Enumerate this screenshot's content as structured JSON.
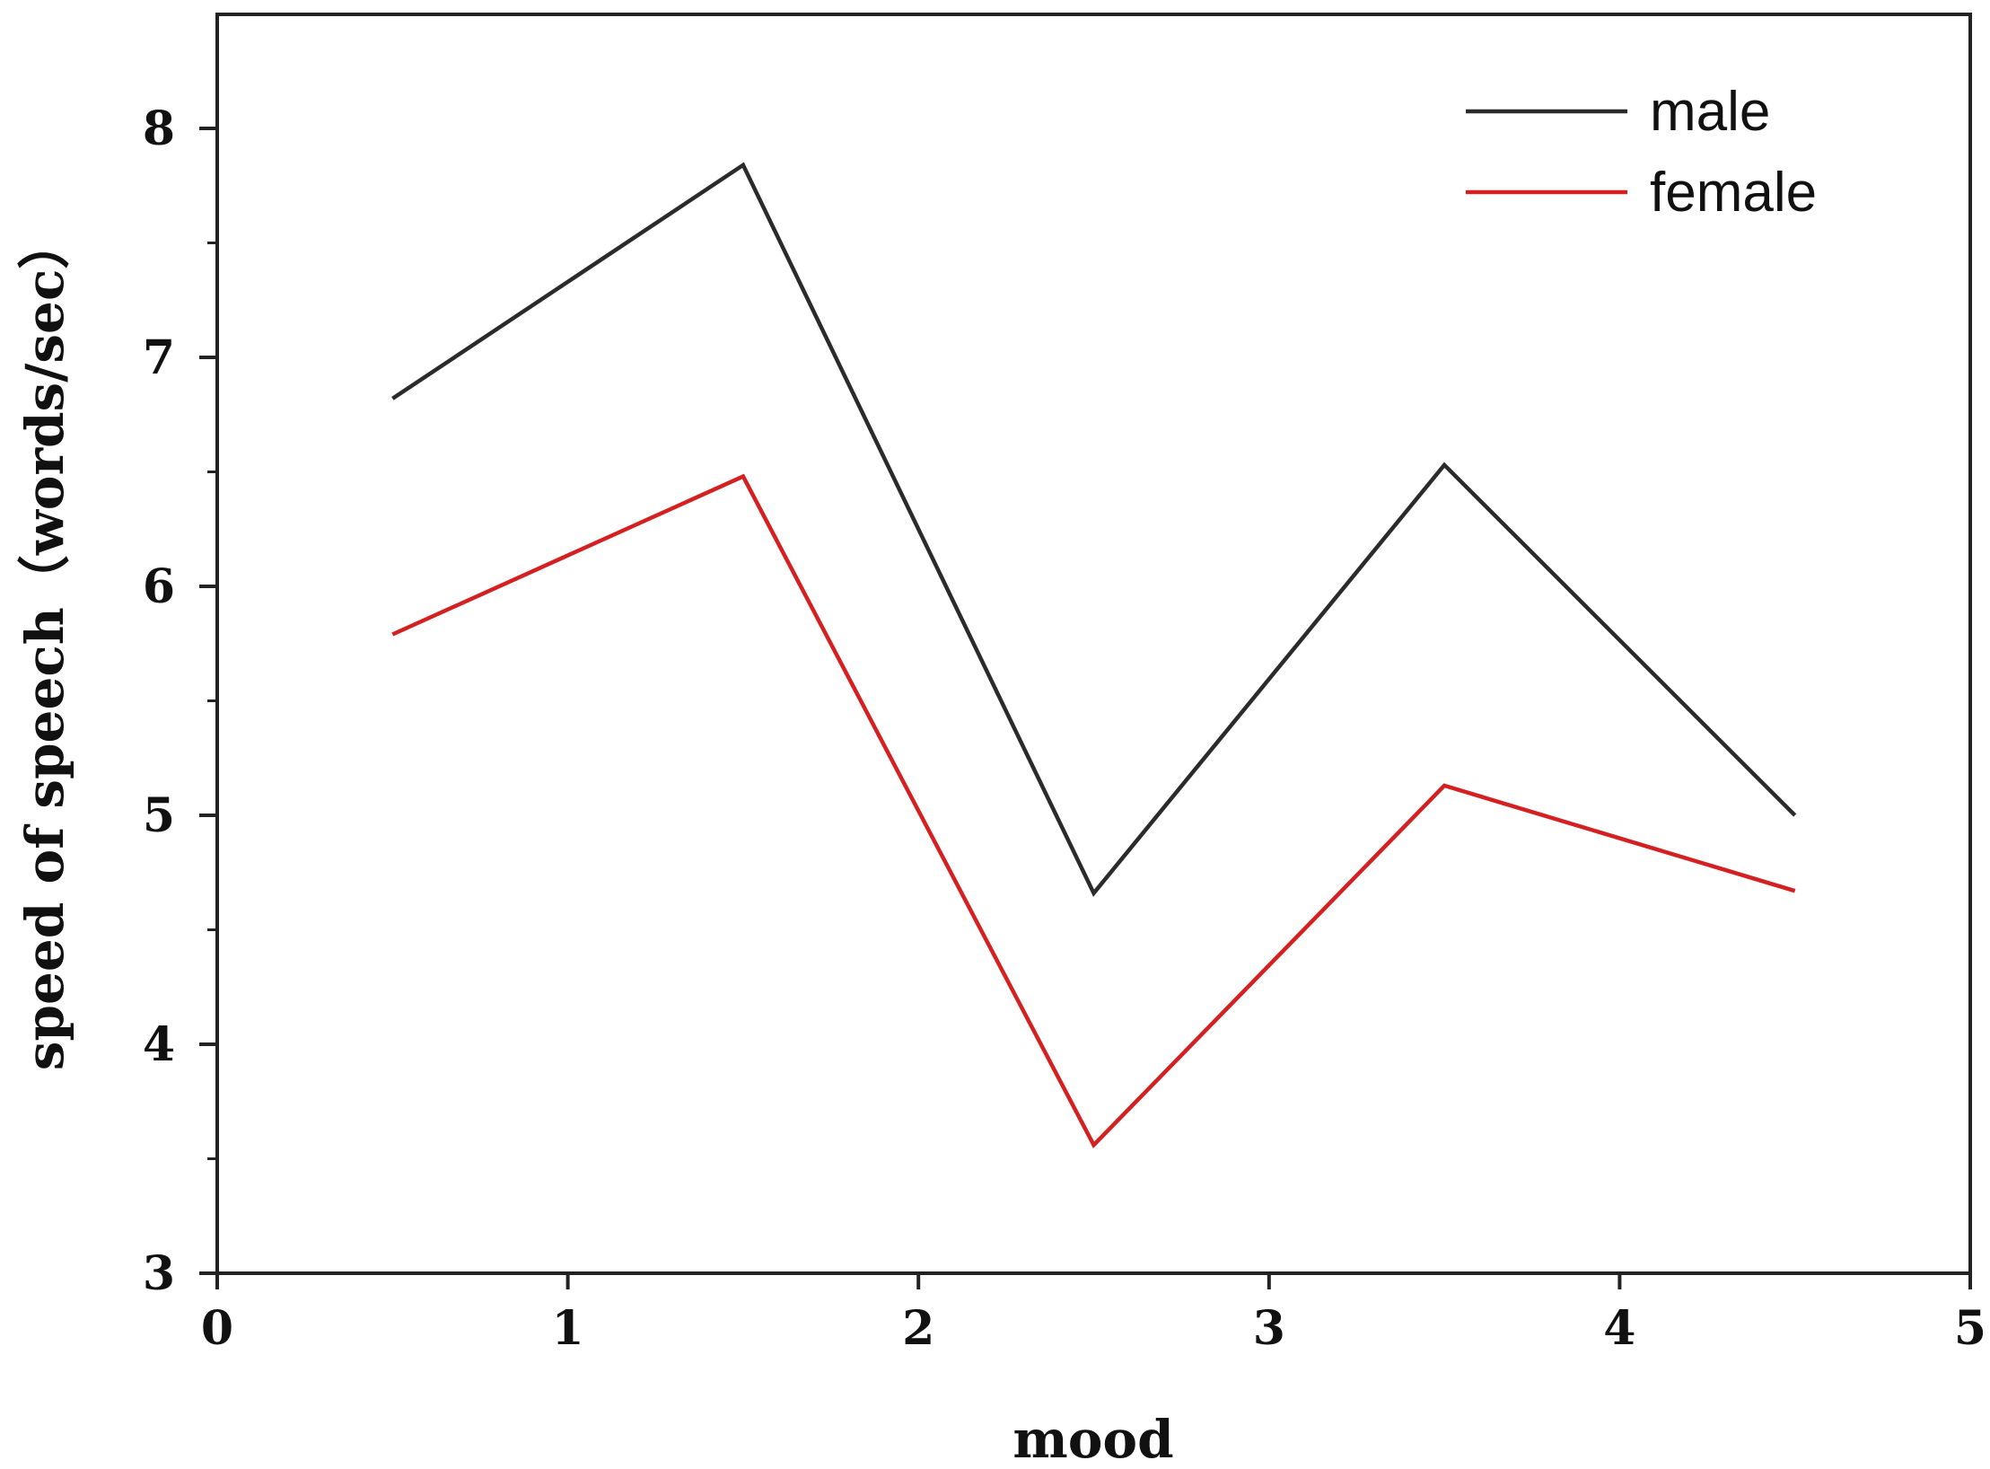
{
  "chart_data": {
    "type": "line",
    "xlabel": "mood",
    "ylabel": "speed of speech（words/sec）",
    "xlim": [
      0,
      5
    ],
    "ylim": [
      3,
      8.5
    ],
    "x_ticks": [
      0,
      1,
      2,
      3,
      4,
      5
    ],
    "x_tick_labels": [
      "0",
      "1",
      "2",
      "3",
      "4",
      "5"
    ],
    "y_ticks": [
      3,
      4,
      5,
      6,
      7,
      8
    ],
    "y_tick_labels": [
      "3",
      "4",
      "5",
      "6",
      "7",
      "8"
    ],
    "y_minor_ticks": [
      3.5,
      4.5,
      5.5,
      6.5,
      7.5,
      8.5
    ],
    "grid": false,
    "legend_position": "top-right",
    "series": [
      {
        "name": "male",
        "color": "#2b2b2b",
        "x": [
          0.5,
          1.5,
          2.5,
          3.5,
          4.5
        ],
        "y": [
          6.82,
          7.84,
          4.66,
          6.53,
          5.0
        ]
      },
      {
        "name": "female",
        "color": "#d42020",
        "x": [
          0.5,
          1.5,
          2.5,
          3.5,
          4.5
        ],
        "y": [
          5.79,
          6.48,
          3.56,
          5.13,
          4.67
        ]
      }
    ]
  }
}
